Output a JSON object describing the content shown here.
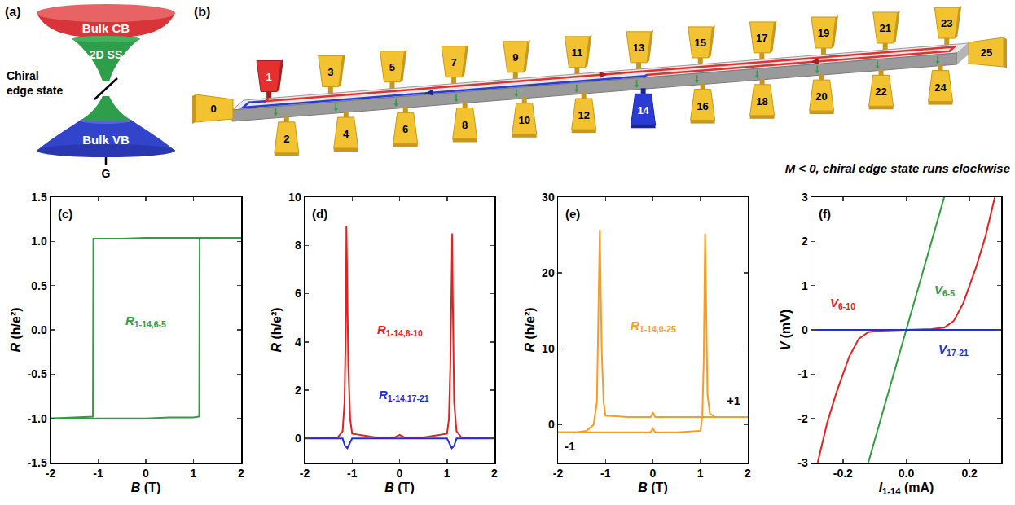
{
  "diagram_a": {
    "label": "(a)",
    "bands": {
      "conduction": "Bulk CB",
      "surface": "2D SS",
      "valence": "Bulk VB"
    },
    "edge_state": "Chiral edge state",
    "gate": "G"
  },
  "diagram_b": {
    "label": "(b)",
    "contacts": {
      "top": [
        1,
        3,
        5,
        7,
        9,
        11,
        13,
        15,
        17,
        19,
        21,
        23
      ],
      "bottom": [
        2,
        4,
        6,
        8,
        10,
        12,
        14,
        16,
        18,
        20,
        22,
        24
      ],
      "left": 0,
      "right": 25
    },
    "source": 1,
    "drain": 14,
    "caption": "M < 0, chiral edge state runs clockwise"
  },
  "chart_data": [
    {
      "type": "line",
      "panel_label": "(c)",
      "xlabel": {
        "symbol": "B",
        "unit": "(T)"
      },
      "ylabel": {
        "symbol": "R",
        "unit": "(h/e²)"
      },
      "xlim": [
        -2,
        2
      ],
      "xticks": [
        -2,
        -1,
        0,
        1,
        2
      ],
      "ylim": [
        -1.5,
        1.5
      ],
      "yticks": [
        -1.5,
        {
          "value": -1,
          "label": "-1.0"
        },
        -0.5,
        {
          "value": 0,
          "label": "0.0"
        },
        0.5,
        {
          "value": 1,
          "label": "1.0"
        },
        1.5
      ],
      "grid": false,
      "series": [
        {
          "color": "#2e9e3e",
          "x": [
            -2,
            -1.5,
            -1,
            -0.5,
            0,
            0.5,
            1,
            1.12,
            1.13,
            1.5,
            2
          ],
          "values": [
            -1.0,
            -1.0,
            -1.0,
            -1.0,
            -1.0,
            -0.99,
            -0.99,
            -0.98,
            1.03,
            1.04,
            1.04
          ]
        },
        {
          "color": "#2e9e3e",
          "x": [
            2,
            1.5,
            1,
            0.5,
            0,
            -0.5,
            -1,
            -1.1,
            -1.11,
            -1.5,
            -2
          ],
          "values": [
            1.04,
            1.04,
            1.04,
            1.04,
            1.04,
            1.03,
            1.03,
            1.03,
            -0.98,
            -0.99,
            -1.0
          ]
        }
      ],
      "annotations": [
        {
          "symbol": "R",
          "sub": "1-14,6-5",
          "x": 0,
          "y": 0.1,
          "color": "#2e9e3e"
        }
      ]
    },
    {
      "type": "line",
      "panel_label": "(d)",
      "xlabel": {
        "symbol": "B",
        "unit": "(T)"
      },
      "ylabel": {
        "symbol": "R",
        "unit": "(h/e²)"
      },
      "xlim": [
        -2,
        2
      ],
      "xticks": [
        -2,
        -1,
        0,
        1,
        2
      ],
      "ylim": [
        -1,
        10
      ],
      "yticks": [
        0,
        2,
        4,
        6,
        8,
        10
      ],
      "grid": false,
      "series": [
        {
          "color": "#e6201e",
          "x": [
            -2,
            -1.5,
            -1.3,
            -1.2,
            -1.16,
            -1.13,
            -1.12,
            -1.11,
            -1.08,
            -1.04,
            -1.0,
            -0.5,
            -0.1,
            0,
            0.1,
            0.5,
            1.0,
            1.04,
            1.07,
            1.1,
            1.11,
            1.12,
            1.15,
            1.2,
            1.3,
            1.5,
            2
          ],
          "values": [
            0.02,
            0.03,
            0.05,
            0.3,
            1.5,
            5.0,
            8.8,
            7.5,
            3.0,
            0.8,
            0.2,
            0.05,
            0.05,
            0.15,
            0.05,
            0.05,
            0.2,
            0.8,
            3.0,
            7.0,
            8.5,
            6.0,
            1.5,
            0.3,
            0.05,
            0.03,
            0.02
          ]
        },
        {
          "color": "#1f2fe0",
          "x": [
            -2,
            -1.2,
            -1.15,
            -1.1,
            -1.05,
            -1,
            0,
            1,
            1.05,
            1.1,
            1.15,
            1.2,
            2
          ],
          "values": [
            0,
            0,
            -0.3,
            -0.4,
            -0.2,
            0,
            0,
            0,
            -0.2,
            -0.4,
            -0.3,
            0,
            0
          ]
        }
      ],
      "annotations": [
        {
          "symbol": "R",
          "sub": "1-14,6-10",
          "x": 0,
          "y": 4.5,
          "color": "#e6201e"
        },
        {
          "symbol": "R",
          "sub": "1-14,17-21",
          "x": 0.1,
          "y": 1.8,
          "color": "#1f2fe0"
        }
      ]
    },
    {
      "type": "line",
      "panel_label": "(e)",
      "xlabel": {
        "symbol": "B",
        "unit": "(T)"
      },
      "ylabel": {
        "symbol": "R",
        "unit": "(h/e²)"
      },
      "xlim": [
        -2,
        2
      ],
      "xticks": [
        -2,
        -1,
        0,
        1,
        2
      ],
      "ylim": [
        -5,
        30
      ],
      "yticks": [
        0,
        10,
        20,
        30
      ],
      "grid": false,
      "series": [
        {
          "color": "#ff9a1a",
          "x": [
            -2,
            -1.5,
            -1,
            -0.5,
            -0.05,
            0,
            0.05,
            0.5,
            1.0,
            1.04,
            1.07,
            1.1,
            1.12,
            1.15,
            1.2,
            1.3,
            1.5,
            2
          ],
          "values": [
            -1.0,
            -1.0,
            -1.0,
            -1.0,
            -1.0,
            -0.5,
            -1.0,
            -1.0,
            -0.8,
            1.0,
            8.0,
            25.2,
            15.0,
            4.0,
            1.5,
            1.0,
            1.0,
            1.0
          ]
        },
        {
          "color": "#ff9a1a",
          "x": [
            2,
            1.5,
            1.0,
            0.5,
            0.05,
            0,
            -0.05,
            -0.5,
            -1.0,
            -1.04,
            -1.08,
            -1.12,
            -1.15,
            -1.18,
            -1.25,
            -1.4,
            -1.6,
            -2
          ],
          "values": [
            1.0,
            1.0,
            1.0,
            1.0,
            1.0,
            1.6,
            1.0,
            1.0,
            1.2,
            3.0,
            10.0,
            25.7,
            12.0,
            3.0,
            0.0,
            -0.8,
            -1.0,
            -1.0
          ]
        }
      ],
      "annotations": [
        {
          "symbol": "R",
          "sub": "1-14,0-25",
          "x": 0,
          "y": 13,
          "color": "#ff9a1a"
        },
        {
          "text": "+1",
          "x": 1.7,
          "y": 3.2,
          "color": "#000000"
        },
        {
          "text": "-1",
          "x": -1.75,
          "y": -2.8,
          "color": "#000000"
        }
      ]
    },
    {
      "type": "line",
      "panel_label": "(f)",
      "xlabel": {
        "symbol": "I",
        "sub": "1-14",
        "unit": "(mA)"
      },
      "ylabel": {
        "symbol": "V",
        "unit": "(mV)"
      },
      "xlim": [
        -0.3,
        0.3
      ],
      "xticks": [
        -0.2,
        {
          "value": 0,
          "label": "0.0"
        },
        0.2
      ],
      "ylim": [
        -3,
        3
      ],
      "yticks": [
        -3,
        -2,
        -1,
        0,
        1,
        2,
        3
      ],
      "grid": false,
      "series": [
        {
          "color": "#2e9e3e",
          "x": [
            -0.12,
            0.12
          ],
          "values": [
            -3,
            3
          ]
        },
        {
          "color": "#e6201e",
          "x": [
            -0.28,
            -0.25,
            -0.22,
            -0.2,
            -0.18,
            -0.15,
            -0.12,
            -0.08,
            0,
            0.08,
            0.12,
            0.15,
            0.18,
            0.2,
            0.22,
            0.25,
            0.28
          ],
          "values": [
            -3.0,
            -2.1,
            -1.4,
            -1.0,
            -0.6,
            -0.2,
            -0.05,
            -0.02,
            0,
            0.02,
            0.05,
            0.2,
            0.6,
            1.0,
            1.4,
            2.1,
            3.0
          ]
        },
        {
          "color": "#1f2fe0",
          "x": [
            -0.3,
            0.3
          ],
          "values": [
            0,
            0
          ]
        }
      ],
      "annotations": [
        {
          "symbol": "V",
          "sub": "6-5",
          "x": 0.12,
          "y": 0.9,
          "color": "#2e9e3e"
        },
        {
          "symbol": "V",
          "sub": "6-10",
          "x": -0.2,
          "y": 0.6,
          "color": "#e6201e"
        },
        {
          "symbol": "V",
          "sub": "17-21",
          "x": 0.15,
          "y": -0.45,
          "color": "#1f2fe0"
        }
      ]
    }
  ]
}
